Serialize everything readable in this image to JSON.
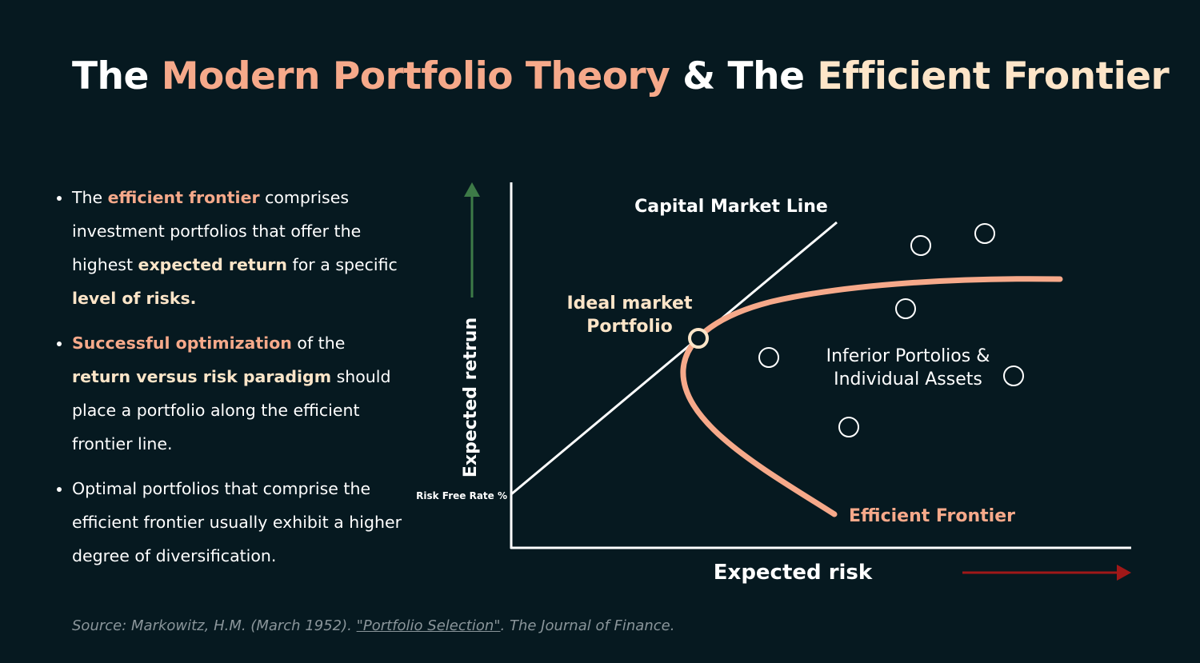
{
  "title": {
    "parts": [
      "The ",
      "Modern Portfolio Theory",
      " & The ",
      "Efficient Frontier"
    ]
  },
  "bullets": [
    [
      "The ",
      "efficient frontier",
      " comprises investment portfolios that offer the highest ",
      "expected return",
      " for a specific ",
      "level of risks."
    ],
    [
      "Successful optimization",
      " of the ",
      "return versus risk paradigm",
      " should place a portfolio along the efficient frontier line."
    ],
    [
      "Optimal portfolios that comprise the efficient frontier usually exhibit a higher degree of diversification."
    ]
  ],
  "diagram": {
    "capital_market_line": "Capital Market Line",
    "ideal_portfolio": [
      "Ideal market",
      "Portfolio"
    ],
    "inferior": [
      "Inferior Portolios &",
      "Individual Assets"
    ],
    "efficient_frontier": "Efficient Frontier",
    "y_axis_label": "Expected retrun",
    "x_axis_label": "Expected risk",
    "risk_free_rate": "Risk Free Rate %"
  },
  "source": {
    "parts": [
      "Source: Markowitz, H.M. (March 1952). ",
      "\"Portfolio Selection\"",
      ". The Journal of Finance."
    ]
  }
}
